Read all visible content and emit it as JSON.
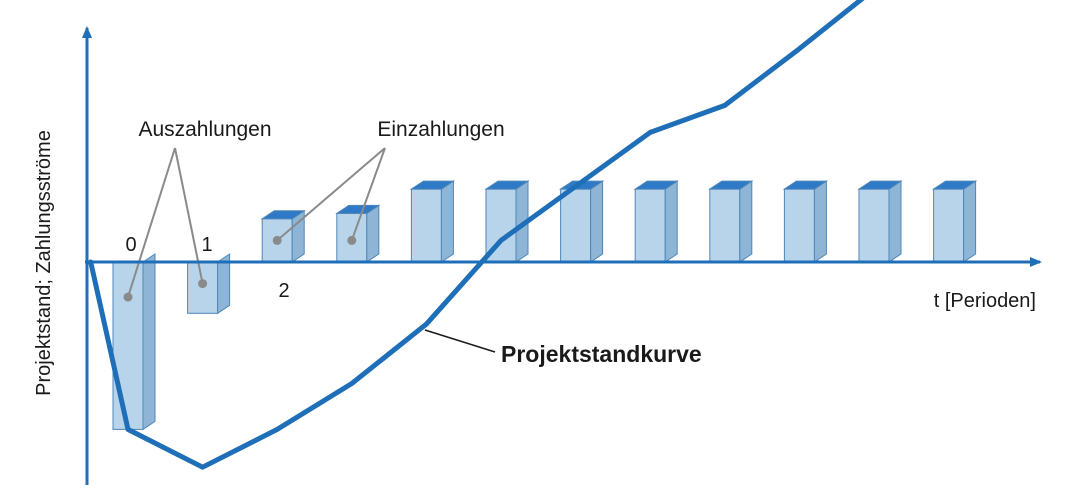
{
  "chart_data": {
    "type": "bar",
    "title": "",
    "xlabel": "t [Perioden]",
    "ylabel": "Projektstand; Zahlungsströme",
    "x": [
      0,
      1,
      2,
      3,
      4,
      5,
      6,
      7,
      8,
      9,
      10,
      11
    ],
    "x_tick_labels": [
      "0",
      "1",
      "2"
    ],
    "bars": [
      {
        "t": 0,
        "value": -6.2
      },
      {
        "t": 1,
        "value": -1.9
      },
      {
        "t": 2,
        "value": 1.6
      },
      {
        "t": 3,
        "value": 1.8
      },
      {
        "t": 4,
        "value": 2.7
      },
      {
        "t": 5,
        "value": 2.7
      },
      {
        "t": 6,
        "value": 2.7
      },
      {
        "t": 7,
        "value": 2.7
      },
      {
        "t": 8,
        "value": 2.7
      },
      {
        "t": 9,
        "value": 2.7
      },
      {
        "t": 10,
        "value": 2.7
      },
      {
        "t": 11,
        "value": 2.7
      }
    ],
    "curve": {
      "name": "Projektstandkurve",
      "points": [
        {
          "t": -0.5,
          "value": 0
        },
        {
          "t": 0,
          "value": -6.2
        },
        {
          "t": 1,
          "value": -7.6
        },
        {
          "t": 2,
          "value": -6.2
        },
        {
          "t": 3,
          "value": -4.5
        },
        {
          "t": 4,
          "value": -2.3
        },
        {
          "t": 5,
          "value": 0.8
        },
        {
          "t": 6,
          "value": 2.8
        },
        {
          "t": 7,
          "value": 4.8
        },
        {
          "t": 8,
          "value": 5.8
        },
        {
          "t": 9,
          "value": 7.9
        },
        {
          "t": 10,
          "value": 10.1
        },
        {
          "t": 11,
          "value": 12.8
        }
      ]
    },
    "annotations": {
      "outflows": "Auszahlungen",
      "inflows": "Einzahlungen",
      "curve_label": "Projektstandkurve"
    },
    "colors": {
      "axis": "#1f6fb8",
      "curve": "#1f6fb8",
      "bar_front": "#b7d4ea",
      "bar_side": "#8fb5d6",
      "bar_top": "#2e7ac6",
      "bar_edge": "#4f86b8",
      "pointer": "#8a8a8a"
    },
    "grid": false,
    "legend": "none"
  }
}
